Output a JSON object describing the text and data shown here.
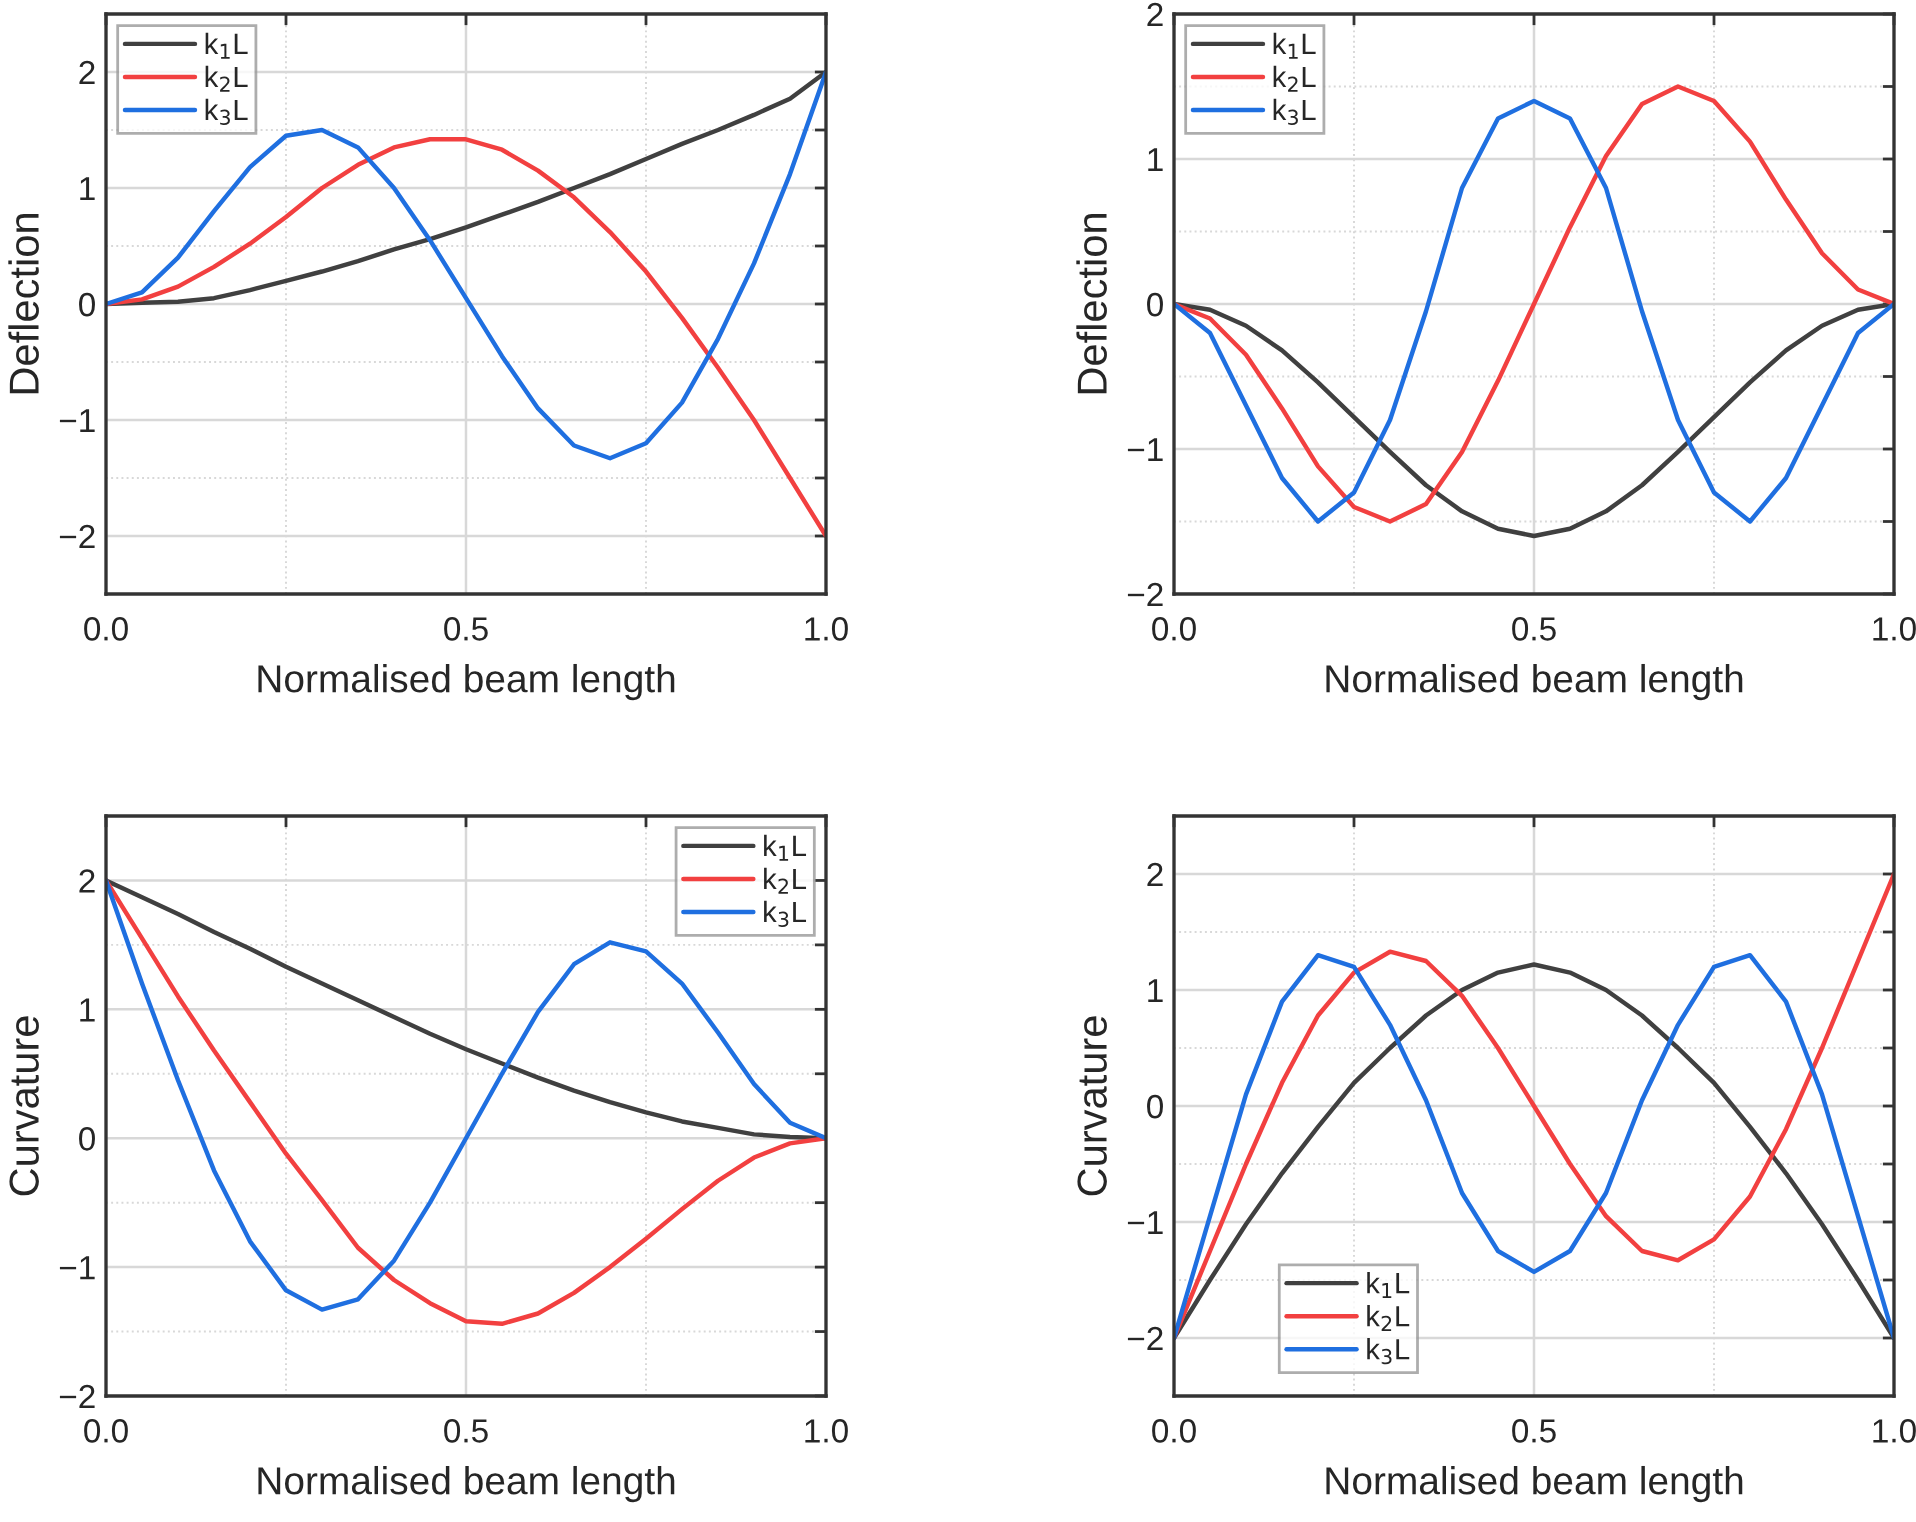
{
  "chart_data": [
    {
      "type": "line",
      "xlabel": "Normalised beam length",
      "ylabel": "Deflection",
      "legend": "top left",
      "grid": true,
      "xlim": [
        0,
        1
      ],
      "ylim": [
        -2.5,
        2.5
      ],
      "xticks": [
        {
          "value": 0,
          "label": "0.0"
        },
        {
          "value": 0.25,
          "label": null
        },
        {
          "value": 0.5,
          "label": "0.5"
        },
        {
          "value": 0.75,
          "label": null
        },
        {
          "value": 1,
          "label": "1.0"
        }
      ],
      "yticks": [
        {
          "value": -2,
          "label": "−2"
        },
        {
          "value": -1.5,
          "label": null
        },
        {
          "value": -1,
          "label": "−1"
        },
        {
          "value": -0.5,
          "label": null
        },
        0,
        {
          "value": 0.5,
          "label": null
        },
        1,
        {
          "value": 1.5,
          "label": null
        },
        2
      ],
      "x": [
        0,
        0.05,
        0.1,
        0.15,
        0.2,
        0.25,
        0.3,
        0.35,
        0.4,
        0.45,
        0.5,
        0.55,
        0.6,
        0.65,
        0.7,
        0.75,
        0.8,
        0.85,
        0.9,
        0.95,
        1
      ],
      "series": [
        {
          "name": "k$_{1}$L",
          "color": "#404040",
          "values": [
            0,
            0.01,
            0.02,
            0.05,
            0.12,
            0.2,
            0.28,
            0.37,
            0.47,
            0.56,
            0.66,
            0.77,
            0.88,
            1.0,
            1.12,
            1.25,
            1.38,
            1.5,
            1.63,
            1.77,
            2.0
          ]
        },
        {
          "name": "k$_{2}$L",
          "color": "#f24040",
          "values": [
            0,
            0.04,
            0.15,
            0.32,
            0.52,
            0.75,
            1.0,
            1.2,
            1.35,
            1.42,
            1.42,
            1.33,
            1.15,
            0.92,
            0.62,
            0.28,
            -0.12,
            -0.55,
            -1.0,
            -1.5,
            -2.0
          ]
        },
        {
          "name": "k$_{3}$L",
          "color": "#1f6fe0",
          "values": [
            0,
            0.1,
            0.4,
            0.8,
            1.18,
            1.45,
            1.5,
            1.35,
            1.0,
            0.55,
            0.05,
            -0.45,
            -0.9,
            -1.22,
            -1.33,
            -1.2,
            -0.85,
            -0.3,
            0.35,
            1.12,
            2.0
          ]
        }
      ]
    },
    {
      "type": "line",
      "xlabel": "Normalised beam length",
      "ylabel": "Deflection",
      "legend": "top left",
      "grid": true,
      "xlim": [
        0,
        1
      ],
      "ylim": [
        -2,
        2
      ],
      "xticks": [
        {
          "value": 0,
          "label": "0.0"
        },
        {
          "value": 0.25,
          "label": null
        },
        {
          "value": 0.5,
          "label": "0.5"
        },
        {
          "value": 0.75,
          "label": null
        },
        {
          "value": 1,
          "label": "1.0"
        }
      ],
      "yticks": [
        {
          "value": -2,
          "label": "−2"
        },
        {
          "value": -1.5,
          "label": null
        },
        {
          "value": -1,
          "label": "−1"
        },
        {
          "value": -0.5,
          "label": null
        },
        0,
        {
          "value": 0.5,
          "label": null
        },
        1,
        {
          "value": 1.5,
          "label": null
        },
        2
      ],
      "x": [
        0,
        0.05,
        0.1,
        0.15,
        0.2,
        0.25,
        0.3,
        0.35,
        0.4,
        0.45,
        0.5,
        0.55,
        0.6,
        0.65,
        0.7,
        0.75,
        0.8,
        0.85,
        0.9,
        0.95,
        1
      ],
      "series": [
        {
          "name": "k$_{1}$L",
          "color": "#404040",
          "values": [
            0,
            -0.04,
            -0.15,
            -0.32,
            -0.54,
            -0.78,
            -1.02,
            -1.25,
            -1.43,
            -1.55,
            -1.6,
            -1.55,
            -1.43,
            -1.25,
            -1.02,
            -0.78,
            -0.54,
            -0.32,
            -0.15,
            -0.04,
            0
          ]
        },
        {
          "name": "k$_{2}$L",
          "color": "#f24040",
          "values": [
            0,
            -0.1,
            -0.35,
            -0.72,
            -1.12,
            -1.4,
            -1.5,
            -1.38,
            -1.02,
            -0.53,
            0,
            0.53,
            1.02,
            1.38,
            1.5,
            1.4,
            1.12,
            0.72,
            0.35,
            0.1,
            0
          ]
        },
        {
          "name": "k$_{3}$L",
          "color": "#1f6fe0",
          "values": [
            0,
            -0.2,
            -0.7,
            -1.2,
            -1.5,
            -1.3,
            -0.8,
            -0.05,
            0.8,
            1.28,
            1.4,
            1.28,
            0.8,
            -0.05,
            -0.8,
            -1.3,
            -1.5,
            -1.2,
            -0.7,
            -0.2,
            0
          ]
        }
      ]
    },
    {
      "type": "line",
      "xlabel": "Normalised beam length",
      "ylabel": "Curvature",
      "legend": "top right",
      "grid": true,
      "xlim": [
        0,
        1
      ],
      "ylim": [
        -2,
        2.5
      ],
      "xticks": [
        {
          "value": 0,
          "label": "0.0"
        },
        {
          "value": 0.25,
          "label": null
        },
        {
          "value": 0.5,
          "label": "0.5"
        },
        {
          "value": 0.75,
          "label": null
        },
        {
          "value": 1,
          "label": "1.0"
        }
      ],
      "yticks": [
        {
          "value": -2,
          "label": "−2"
        },
        {
          "value": -1.5,
          "label": null
        },
        {
          "value": -1,
          "label": "−1"
        },
        {
          "value": -0.5,
          "label": null
        },
        0,
        {
          "value": 0.5,
          "label": null
        },
        1,
        {
          "value": 1.5,
          "label": null
        },
        2
      ],
      "x": [
        0,
        0.05,
        0.1,
        0.15,
        0.2,
        0.25,
        0.3,
        0.35,
        0.4,
        0.45,
        0.5,
        0.55,
        0.6,
        0.65,
        0.7,
        0.75,
        0.8,
        0.85,
        0.9,
        0.95,
        1
      ],
      "series": [
        {
          "name": "k$_{1}$L",
          "color": "#404040",
          "values": [
            2,
            1.87,
            1.74,
            1.6,
            1.47,
            1.33,
            1.2,
            1.07,
            0.94,
            0.81,
            0.69,
            0.58,
            0.47,
            0.37,
            0.28,
            0.2,
            0.13,
            0.08,
            0.03,
            0.01,
            0
          ]
        },
        {
          "name": "k$_{2}$L",
          "color": "#f24040",
          "values": [
            2,
            1.55,
            1.1,
            0.68,
            0.28,
            -0.12,
            -0.48,
            -0.85,
            -1.1,
            -1.28,
            -1.42,
            -1.44,
            -1.36,
            -1.2,
            -1.0,
            -0.78,
            -0.55,
            -0.33,
            -0.15,
            -0.04,
            0
          ]
        },
        {
          "name": "k$_{3}$L",
          "color": "#1f6fe0",
          "values": [
            2,
            1.2,
            0.45,
            -0.25,
            -0.8,
            -1.18,
            -1.33,
            -1.25,
            -0.95,
            -0.5,
            0,
            0.5,
            0.98,
            1.35,
            1.52,
            1.45,
            1.2,
            0.82,
            0.42,
            0.12,
            0
          ]
        }
      ]
    },
    {
      "type": "line",
      "xlabel": "Normalised beam length",
      "ylabel": "Curvature",
      "legend": "bottom left",
      "grid": true,
      "xlim": [
        0,
        1
      ],
      "ylim": [
        -2.5,
        2.5
      ],
      "xticks": [
        {
          "value": 0,
          "label": "0.0"
        },
        {
          "value": 0.25,
          "label": null
        },
        {
          "value": 0.5,
          "label": "0.5"
        },
        {
          "value": 0.75,
          "label": null
        },
        {
          "value": 1,
          "label": "1.0"
        }
      ],
      "yticks": [
        {
          "value": -2,
          "label": "−2"
        },
        {
          "value": -1.5,
          "label": null
        },
        {
          "value": -1,
          "label": "−1"
        },
        {
          "value": -0.5,
          "label": null
        },
        0,
        {
          "value": 0.5,
          "label": null
        },
        1,
        {
          "value": 1.5,
          "label": null
        },
        2
      ],
      "x": [
        0,
        0.05,
        0.1,
        0.15,
        0.2,
        0.25,
        0.3,
        0.35,
        0.4,
        0.45,
        0.5,
        0.55,
        0.6,
        0.65,
        0.7,
        0.75,
        0.8,
        0.85,
        0.9,
        0.95,
        1
      ],
      "series": [
        {
          "name": "k$_{1}$L",
          "color": "#404040",
          "values": [
            -2,
            -1.5,
            -1.02,
            -0.58,
            -0.18,
            0.2,
            0.5,
            0.78,
            1.0,
            1.15,
            1.22,
            1.15,
            1.0,
            0.78,
            0.5,
            0.2,
            -0.18,
            -0.58,
            -1.02,
            -1.5,
            -2
          ]
        },
        {
          "name": "k$_{2}$L",
          "color": "#f24040",
          "values": [
            -2,
            -1.25,
            -0.5,
            0.2,
            0.78,
            1.15,
            1.33,
            1.25,
            0.95,
            0.5,
            0,
            -0.5,
            -0.95,
            -1.25,
            -1.33,
            -1.15,
            -0.78,
            -0.2,
            0.5,
            1.25,
            2
          ]
        },
        {
          "name": "k$_{3}$L",
          "color": "#1f6fe0",
          "values": [
            -2,
            -0.95,
            0.1,
            0.9,
            1.3,
            1.2,
            0.7,
            0.05,
            -0.75,
            -1.25,
            -1.43,
            -1.25,
            -0.75,
            0.05,
            0.7,
            1.2,
            1.3,
            0.9,
            0.1,
            -0.95,
            -2
          ]
        }
      ]
    }
  ]
}
